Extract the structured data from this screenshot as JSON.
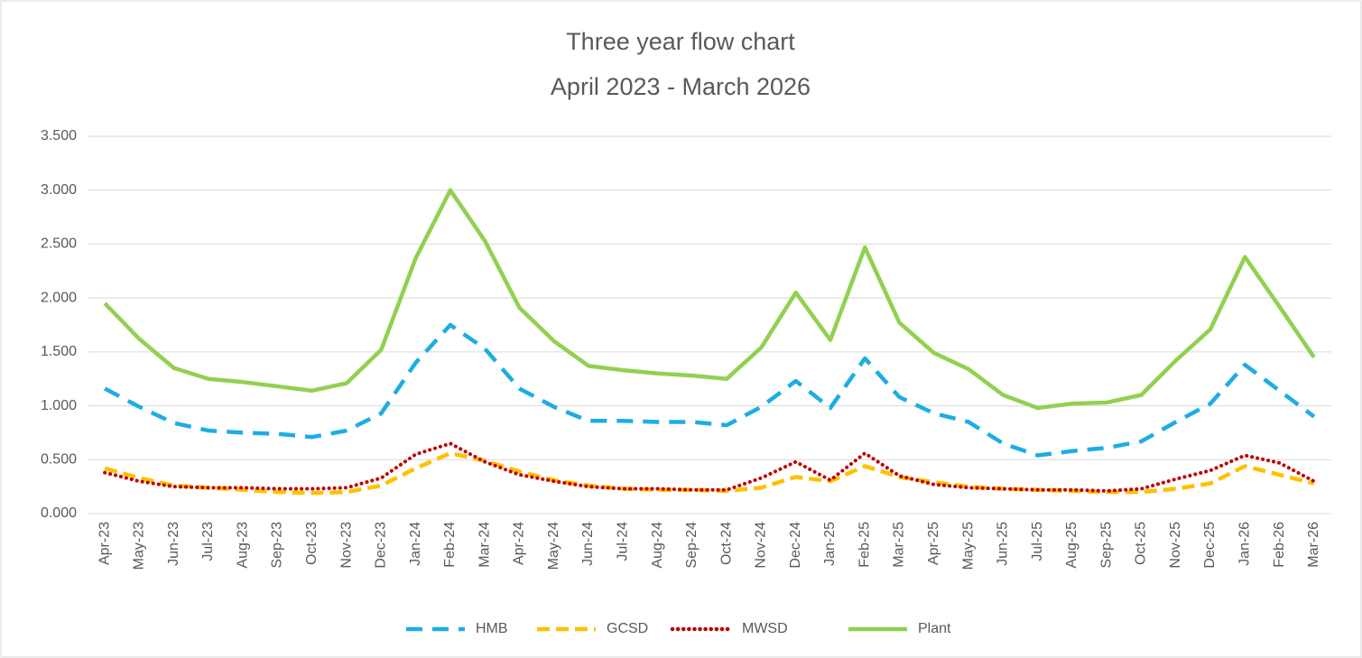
{
  "chart_data": {
    "type": "line",
    "title": "Three year flow chart",
    "subtitle": "April 2023 - March 2026",
    "categories": [
      "Apr-23",
      "May-23",
      "Jun-23",
      "Jul-23",
      "Aug-23",
      "Sep-23",
      "Oct-23",
      "Nov-23",
      "Dec-23",
      "Jan-24",
      "Feb-24",
      "Mar-24",
      "Apr-24",
      "May-24",
      "Jun-24",
      "Jul-24",
      "Aug-24",
      "Sep-24",
      "Oct-24",
      "Nov-24",
      "Dec-24",
      "Jan-25",
      "Feb-25",
      "Mar-25",
      "Apr-25",
      "May-25",
      "Jun-25",
      "Jul-25",
      "Aug-25",
      "Sep-25",
      "Oct-25",
      "Nov-25",
      "Dec-25",
      "Jan-26",
      "Feb-26",
      "Mar-26"
    ],
    "series": [
      {
        "name": "HMB",
        "color": "#1cade4",
        "dash": "18,11",
        "values": [
          1.16,
          0.99,
          0.84,
          0.77,
          0.75,
          0.74,
          0.71,
          0.77,
          0.93,
          1.4,
          1.75,
          1.53,
          1.16,
          0.99,
          0.86,
          0.86,
          0.85,
          0.85,
          0.82,
          0.99,
          1.23,
          0.98,
          1.44,
          1.08,
          0.93,
          0.85,
          0.65,
          0.54,
          0.58,
          0.61,
          0.67,
          0.85,
          1.02,
          1.38,
          1.14,
          0.9
        ]
      },
      {
        "name": "GCSD",
        "color": "#ffc000",
        "dash": "14,7",
        "values": [
          0.42,
          0.33,
          0.26,
          0.24,
          0.22,
          0.2,
          0.19,
          0.2,
          0.26,
          0.42,
          0.56,
          0.49,
          0.39,
          0.31,
          0.26,
          0.23,
          0.22,
          0.22,
          0.21,
          0.24,
          0.34,
          0.3,
          0.44,
          0.34,
          0.29,
          0.25,
          0.23,
          0.22,
          0.21,
          0.2,
          0.2,
          0.23,
          0.28,
          0.44,
          0.36,
          0.28
        ]
      },
      {
        "name": "MWSD",
        "color": "#c00000",
        "dash": "0.1,6",
        "values": [
          0.38,
          0.3,
          0.25,
          0.24,
          0.24,
          0.23,
          0.23,
          0.24,
          0.33,
          0.55,
          0.65,
          0.48,
          0.36,
          0.3,
          0.25,
          0.23,
          0.23,
          0.22,
          0.22,
          0.33,
          0.48,
          0.31,
          0.56,
          0.35,
          0.27,
          0.24,
          0.23,
          0.22,
          0.22,
          0.21,
          0.23,
          0.32,
          0.4,
          0.54,
          0.47,
          0.3
        ]
      },
      {
        "name": "Plant",
        "color": "#92d050",
        "dash": "none",
        "values": [
          1.95,
          1.62,
          1.35,
          1.25,
          1.22,
          1.18,
          1.14,
          1.21,
          1.52,
          2.37,
          3.0,
          2.53,
          1.91,
          1.6,
          1.37,
          1.33,
          1.3,
          1.28,
          1.25,
          1.54,
          2.05,
          1.61,
          2.47,
          1.77,
          1.49,
          1.34,
          1.1,
          0.98,
          1.02,
          1.03,
          1.1,
          1.42,
          1.71,
          2.38,
          1.92,
          1.45
        ]
      }
    ],
    "ylim": [
      0,
      3.5
    ],
    "yticks": [
      {
        "value": 0,
        "label": "0.000"
      },
      {
        "value": 0.5,
        "label": "0.500"
      },
      {
        "value": 1,
        "label": "1.000"
      },
      {
        "value": 1.5,
        "label": "1.500"
      },
      {
        "value": 2,
        "label": "2.000"
      },
      {
        "value": 2.5,
        "label": "2.500"
      },
      {
        "value": 3,
        "label": "3.000"
      },
      {
        "value": 3.5,
        "label": "3.500"
      }
    ],
    "grid": true,
    "legend": "bottom"
  }
}
